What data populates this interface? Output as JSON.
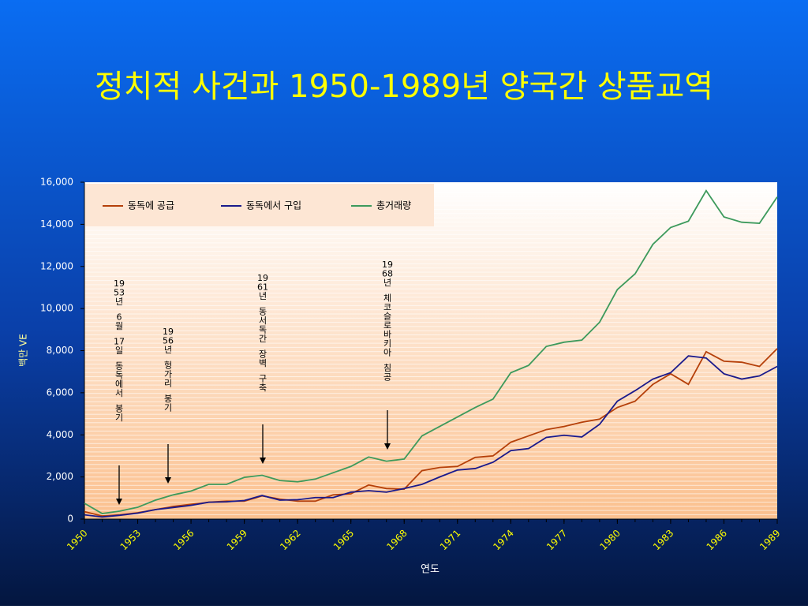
{
  "chart_data": {
    "type": "line",
    "title": "정치적 사건과 1950-1989년 양국간 상품교역",
    "x_label": "연도",
    "y_label": "백만 VE",
    "x": [
      1950,
      1951,
      1952,
      1953,
      1954,
      1955,
      1956,
      1957,
      1958,
      1959,
      1960,
      1961,
      1962,
      1963,
      1964,
      1965,
      1966,
      1967,
      1968,
      1969,
      1970,
      1971,
      1972,
      1973,
      1974,
      1975,
      1976,
      1977,
      1978,
      1979,
      1980,
      1981,
      1982,
      1983,
      1984,
      1985,
      1986,
      1987,
      1988,
      1989
    ],
    "xlim": [
      1950,
      1989
    ],
    "xticks": [
      1950,
      1953,
      1956,
      1959,
      1962,
      1965,
      1968,
      1971,
      1974,
      1977,
      1980,
      1983,
      1986,
      1989
    ],
    "ylim": [
      0,
      16000
    ],
    "yticks": [
      0,
      {
        "value": 2000,
        "label": "2,000"
      },
      {
        "value": 4000,
        "label": "4,000"
      },
      {
        "value": 6000,
        "label": "6,000"
      },
      {
        "value": 8000,
        "label": "8,000"
      },
      {
        "value": 10000,
        "label": "10,000"
      },
      {
        "value": 12000,
        "label": "12,000"
      },
      {
        "value": 14000,
        "label": "14,000"
      },
      {
        "value": 16000,
        "label": "16,000"
      }
    ],
    "legend": "top-left",
    "series": [
      {
        "name": "동독에 공급",
        "color": "#b5400a",
        "values": [
          350,
          150,
          200,
          300,
          450,
          600,
          700,
          800,
          850,
          850,
          1100,
          950,
          850,
          850,
          1150,
          1200,
          1620,
          1450,
          1420,
          2300,
          2450,
          2500,
          2930,
          3000,
          3650,
          3950,
          4250,
          4400,
          4600,
          4750,
          5300,
          5600,
          6400,
          6900,
          6400,
          7950,
          7500,
          7450,
          7250,
          8100
        ]
      },
      {
        "name": "동독에서 구입",
        "color": "#1a1a8c",
        "values": [
          200,
          100,
          180,
          280,
          450,
          550,
          650,
          800,
          820,
          880,
          1120,
          900,
          920,
          1020,
          1020,
          1280,
          1350,
          1280,
          1450,
          1650,
          2000,
          2330,
          2400,
          2700,
          3250,
          3350,
          3880,
          3980,
          3900,
          4500,
          5600,
          6100,
          6650,
          6950,
          7750,
          7650,
          6900,
          6650,
          6800,
          7250
        ]
      },
      {
        "name": "총거래량",
        "color": "#3d9a5c",
        "values": [
          750,
          260,
          380,
          560,
          900,
          1150,
          1330,
          1650,
          1650,
          1980,
          2080,
          1830,
          1770,
          1900,
          2200,
          2500,
          2950,
          2750,
          2850,
          3950,
          4400,
          4850,
          5300,
          5700,
          6950,
          7300,
          8200,
          8400,
          8500,
          9350,
          10900,
          11650,
          13050,
          13850,
          14150,
          15600,
          14350,
          14100,
          14050,
          15300
        ]
      }
    ],
    "annotations": [
      "1953년 6월 17일 동독에서 봉기",
      "1956년 헝가리 봉기",
      "1961년 동서독간 장벽 구축",
      "1968년 체코슬로바키아 침공"
    ]
  }
}
